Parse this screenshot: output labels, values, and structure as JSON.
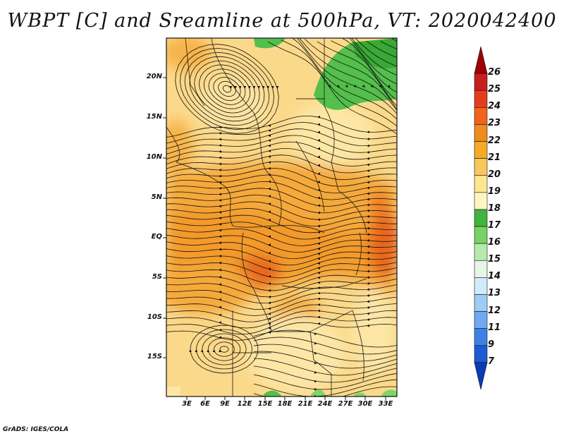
{
  "title": "WBPT [C] and Sreamline at 500hPa, VT: 2020042400",
  "credit": "GrADS: IGES/COLA",
  "map": {
    "lat_labels": [
      "20N",
      "15N",
      "10N",
      "5N",
      "EQ",
      "5S",
      "10S",
      "15S"
    ],
    "lon_labels": [
      "3E",
      "6E",
      "9E",
      "12E",
      "15E",
      "18E",
      "21E",
      "24E",
      "27E",
      "30E",
      "33E"
    ]
  },
  "colorbar": {
    "labels": [
      "26",
      "25",
      "24",
      "23",
      "22",
      "21",
      "20",
      "19",
      "18",
      "17",
      "16",
      "15",
      "14",
      "13",
      "12",
      "11",
      "9",
      "7"
    ],
    "colors": [
      "#a00000",
      "#c81e1e",
      "#e63c1e",
      "#f0641e",
      "#f08c1e",
      "#f5aa28",
      "#f8c85a",
      "#fce690",
      "#fff5c0",
      "#40b43c",
      "#78d264",
      "#b4ebaa",
      "#e6f5e6",
      "#d2ebfa",
      "#9ccdf5",
      "#6eaaf0",
      "#3c82e6",
      "#1e5ad2",
      "#0a3cb4"
    ]
  }
}
